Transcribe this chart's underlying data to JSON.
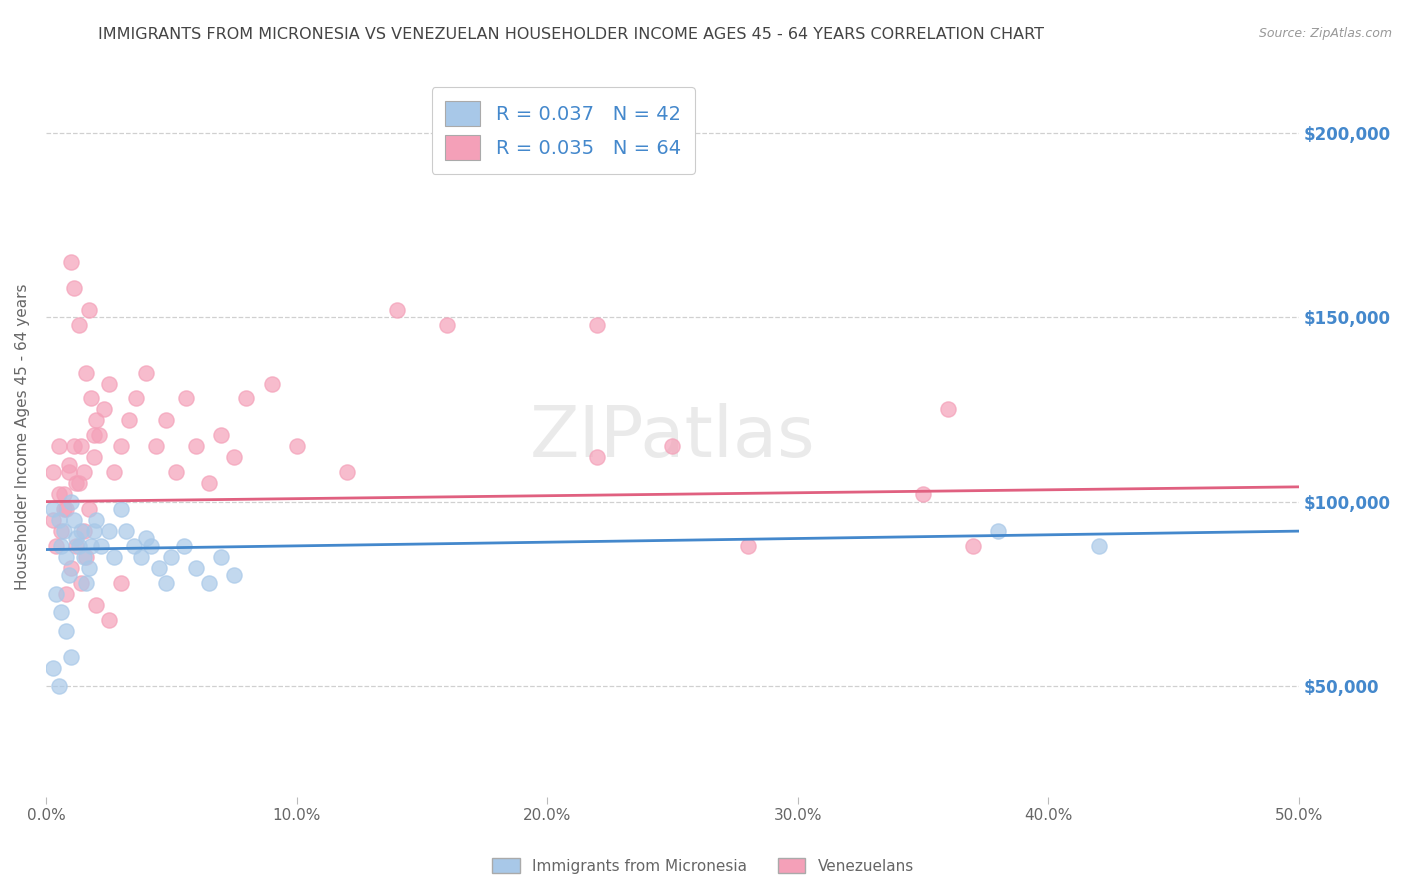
{
  "title": "IMMIGRANTS FROM MICRONESIA VS VENEZUELAN HOUSEHOLDER INCOME AGES 45 - 64 YEARS CORRELATION CHART",
  "source": "Source: ZipAtlas.com",
  "ylabel": "Householder Income Ages 45 - 64 years",
  "xlim": [
    0.0,
    0.5
  ],
  "ylim": [
    20000,
    215000
  ],
  "xtick_labels": [
    "0.0%",
    "10.0%",
    "20.0%",
    "30.0%",
    "40.0%",
    "50.0%"
  ],
  "xtick_vals": [
    0.0,
    0.1,
    0.2,
    0.3,
    0.4,
    0.5
  ],
  "ytick_vals": [
    50000,
    100000,
    150000,
    200000
  ],
  "ytick_labels": [
    "$50,000",
    "$100,000",
    "$150,000",
    "$200,000"
  ],
  "watermark": "ZIPatlas",
  "legend_blue_R": "R = 0.037",
  "legend_blue_N": "N = 42",
  "legend_pink_R": "R = 0.035",
  "legend_pink_N": "N = 64",
  "blue_color": "#a8c8e8",
  "pink_color": "#f4a0b8",
  "blue_line_color": "#4488cc",
  "pink_line_color": "#e06080",
  "scatter_blue": [
    [
      0.003,
      98000
    ],
    [
      0.005,
      95000
    ],
    [
      0.006,
      88000
    ],
    [
      0.007,
      92000
    ],
    [
      0.008,
      85000
    ],
    [
      0.009,
      80000
    ],
    [
      0.01,
      100000
    ],
    [
      0.011,
      95000
    ],
    [
      0.012,
      90000
    ],
    [
      0.013,
      88000
    ],
    [
      0.014,
      92000
    ],
    [
      0.015,
      85000
    ],
    [
      0.016,
      78000
    ],
    [
      0.017,
      82000
    ],
    [
      0.018,
      88000
    ],
    [
      0.019,
      92000
    ],
    [
      0.02,
      95000
    ],
    [
      0.022,
      88000
    ],
    [
      0.025,
      92000
    ],
    [
      0.027,
      85000
    ],
    [
      0.03,
      98000
    ],
    [
      0.032,
      92000
    ],
    [
      0.035,
      88000
    ],
    [
      0.038,
      85000
    ],
    [
      0.04,
      90000
    ],
    [
      0.042,
      88000
    ],
    [
      0.045,
      82000
    ],
    [
      0.048,
      78000
    ],
    [
      0.05,
      85000
    ],
    [
      0.055,
      88000
    ],
    [
      0.06,
      82000
    ],
    [
      0.065,
      78000
    ],
    [
      0.07,
      85000
    ],
    [
      0.075,
      80000
    ],
    [
      0.004,
      75000
    ],
    [
      0.006,
      70000
    ],
    [
      0.008,
      65000
    ],
    [
      0.01,
      58000
    ],
    [
      0.003,
      55000
    ],
    [
      0.005,
      50000
    ],
    [
      0.38,
      92000
    ],
    [
      0.42,
      88000
    ]
  ],
  "scatter_pink": [
    [
      0.003,
      108000
    ],
    [
      0.005,
      115000
    ],
    [
      0.007,
      102000
    ],
    [
      0.008,
      98000
    ],
    [
      0.009,
      110000
    ],
    [
      0.01,
      165000
    ],
    [
      0.011,
      158000
    ],
    [
      0.012,
      105000
    ],
    [
      0.013,
      148000
    ],
    [
      0.014,
      115000
    ],
    [
      0.015,
      108000
    ],
    [
      0.016,
      135000
    ],
    [
      0.017,
      152000
    ],
    [
      0.018,
      128000
    ],
    [
      0.019,
      118000
    ],
    [
      0.02,
      122000
    ],
    [
      0.003,
      95000
    ],
    [
      0.005,
      102000
    ],
    [
      0.007,
      98000
    ],
    [
      0.009,
      108000
    ],
    [
      0.011,
      115000
    ],
    [
      0.013,
      105000
    ],
    [
      0.015,
      92000
    ],
    [
      0.017,
      98000
    ],
    [
      0.019,
      112000
    ],
    [
      0.021,
      118000
    ],
    [
      0.023,
      125000
    ],
    [
      0.025,
      132000
    ],
    [
      0.027,
      108000
    ],
    [
      0.03,
      115000
    ],
    [
      0.033,
      122000
    ],
    [
      0.036,
      128000
    ],
    [
      0.04,
      135000
    ],
    [
      0.044,
      115000
    ],
    [
      0.048,
      122000
    ],
    [
      0.052,
      108000
    ],
    [
      0.056,
      128000
    ],
    [
      0.06,
      115000
    ],
    [
      0.065,
      105000
    ],
    [
      0.07,
      118000
    ],
    [
      0.075,
      112000
    ],
    [
      0.08,
      128000
    ],
    [
      0.09,
      132000
    ],
    [
      0.1,
      115000
    ],
    [
      0.12,
      108000
    ],
    [
      0.004,
      88000
    ],
    [
      0.006,
      92000
    ],
    [
      0.008,
      75000
    ],
    [
      0.01,
      82000
    ],
    [
      0.012,
      88000
    ],
    [
      0.014,
      78000
    ],
    [
      0.016,
      85000
    ],
    [
      0.02,
      72000
    ],
    [
      0.025,
      68000
    ],
    [
      0.03,
      78000
    ],
    [
      0.35,
      102000
    ],
    [
      0.37,
      88000
    ],
    [
      0.36,
      125000
    ],
    [
      0.22,
      112000
    ],
    [
      0.28,
      88000
    ],
    [
      0.22,
      148000
    ],
    [
      0.25,
      115000
    ],
    [
      0.16,
      148000
    ],
    [
      0.14,
      152000
    ]
  ],
  "blue_trend_x": [
    0.0,
    0.5
  ],
  "blue_trend_y": [
    87000,
    92000
  ],
  "pink_trend_x": [
    0.0,
    0.5
  ],
  "pink_trend_y": [
    100000,
    104000
  ],
  "grid_color": "#d0d0d0",
  "bg_color": "#ffffff",
  "title_color": "#444444",
  "axis_label_color": "#666666",
  "right_ytick_color": "#4488cc"
}
